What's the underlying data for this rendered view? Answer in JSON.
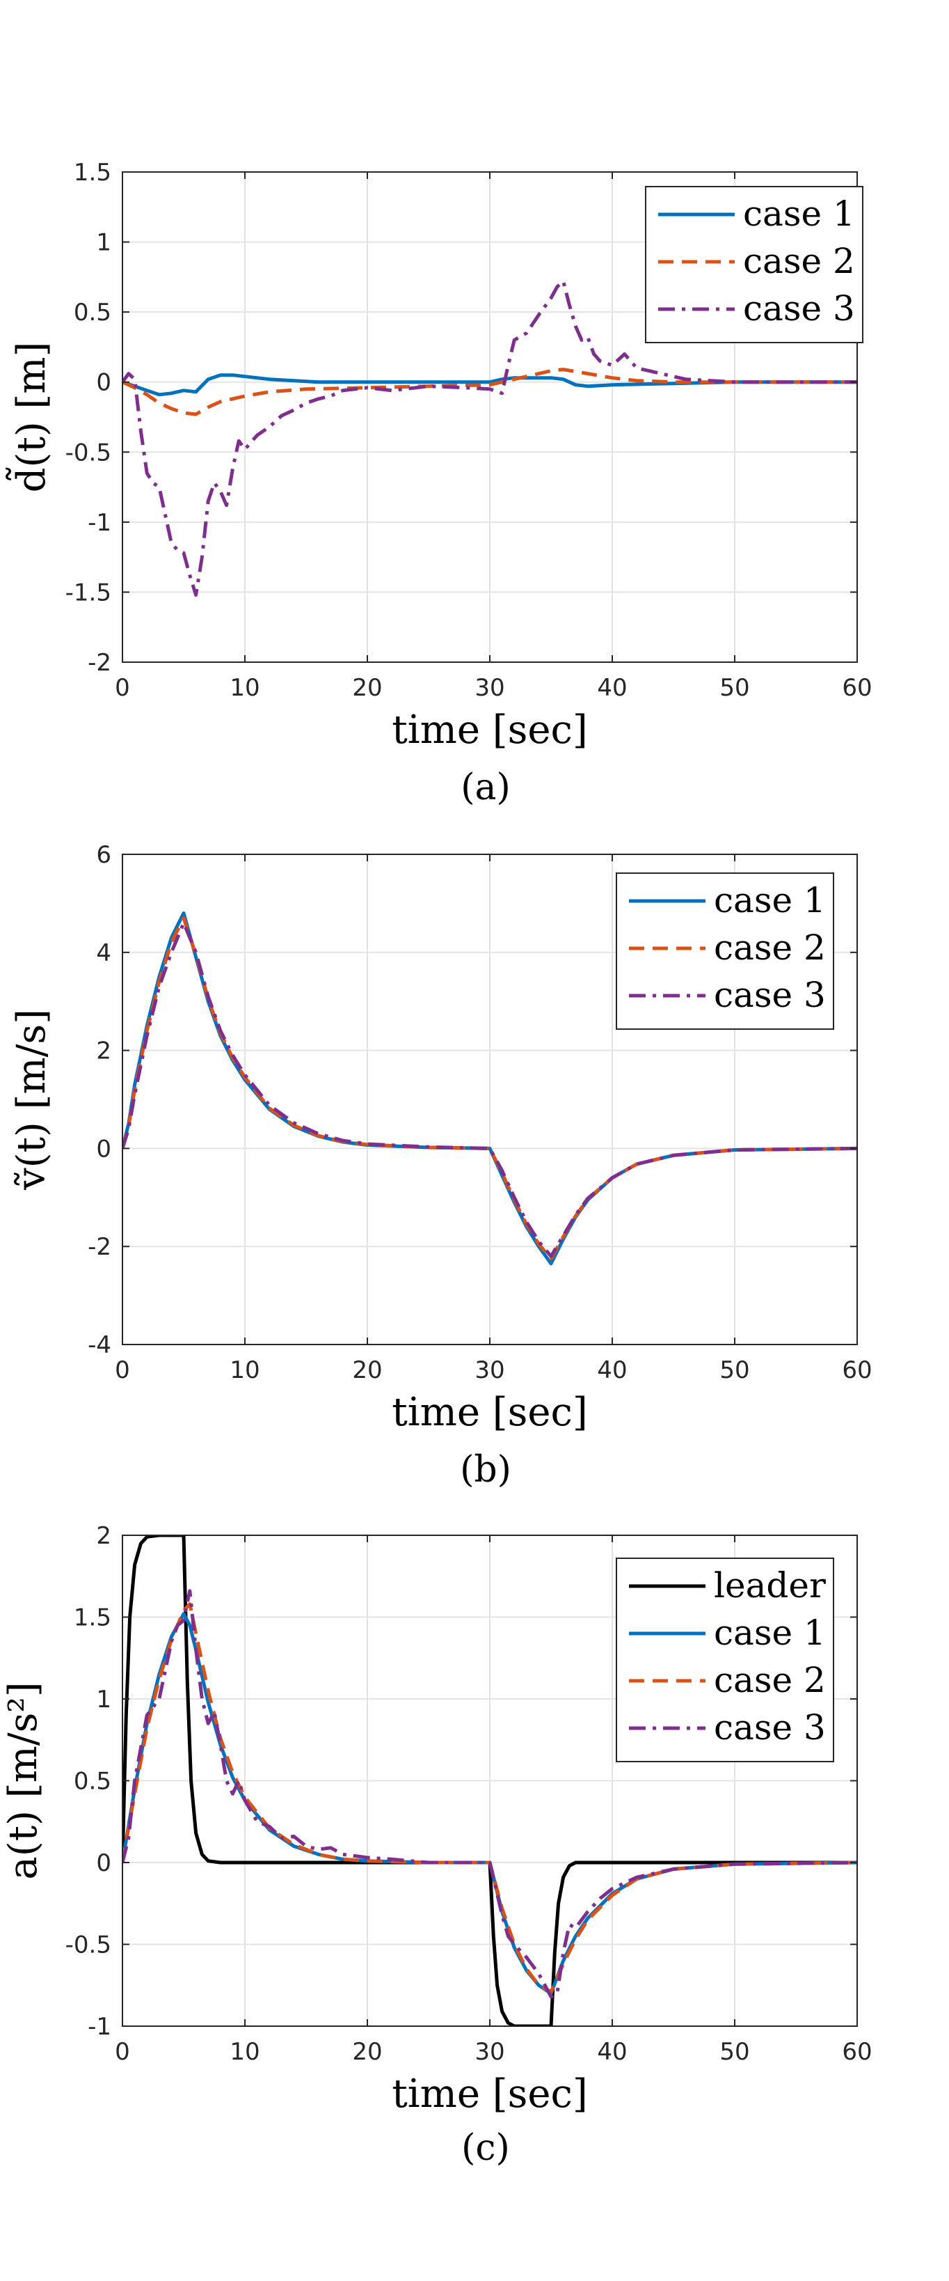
{
  "colors": {
    "leader": "#000000",
    "case1": "#0072BD",
    "case2": "#D95319",
    "case3": "#7E2F8E"
  },
  "chart_data": [
    {
      "type": "line",
      "panel": "(a)",
      "xlabel": "time [sec]",
      "ylabel": "d̃(t) [m]",
      "xlim": [
        0,
        60
      ],
      "ylim": [
        -2,
        1.5
      ],
      "xticks": [
        0,
        10,
        20,
        30,
        40,
        50,
        60
      ],
      "yticks": [
        -2,
        -1.5,
        -1,
        -0.5,
        0,
        0.5,
        1,
        1.5
      ],
      "ytick_labels": [
        "-2",
        "-1.5",
        "-1",
        "-0.5",
        "0",
        "0.5",
        "1",
        "1.5"
      ],
      "grid": true,
      "legend_position": "top-right",
      "series": [
        {
          "name": "case 1",
          "style": "solid",
          "x": [
            0,
            1,
            2,
            3,
            4,
            5,
            6,
            7,
            8,
            9,
            10,
            12,
            14,
            16,
            20,
            25,
            30,
            31,
            32,
            33,
            34,
            35,
            36,
            37,
            38,
            40,
            45,
            50,
            60
          ],
          "y": [
            0,
            -0.03,
            -0.06,
            -0.09,
            -0.08,
            -0.06,
            -0.07,
            0.02,
            0.05,
            0.05,
            0.04,
            0.02,
            0.01,
            0,
            0,
            0,
            0,
            0.02,
            0.03,
            0.03,
            0.03,
            0.03,
            0.02,
            -0.02,
            -0.03,
            -0.02,
            -0.01,
            0,
            0
          ]
        },
        {
          "name": "case 2",
          "style": "dashed",
          "x": [
            0,
            1,
            2,
            3,
            4,
            5,
            6,
            7,
            8,
            10,
            12,
            15,
            20,
            25,
            30,
            31,
            32,
            33,
            34,
            35,
            36,
            38,
            40,
            42,
            45,
            50,
            60
          ],
          "y": [
            0,
            -0.04,
            -0.09,
            -0.15,
            -0.19,
            -0.22,
            -0.23,
            -0.18,
            -0.14,
            -0.1,
            -0.07,
            -0.05,
            -0.04,
            -0.03,
            -0.02,
            0,
            0.02,
            0.04,
            0.06,
            0.08,
            0.09,
            0.06,
            0.03,
            0.01,
            0,
            0,
            0
          ]
        },
        {
          "name": "case 3",
          "style": "dashdot",
          "x": [
            0,
            0.5,
            1,
            1.5,
            2,
            2.5,
            3,
            3.5,
            4,
            4.5,
            5,
            5.5,
            6,
            6.5,
            7,
            7.5,
            8,
            8.5,
            9,
            9.5,
            10,
            11,
            12,
            13,
            14,
            15,
            16,
            17,
            18,
            20,
            22,
            25,
            28,
            30,
            31,
            31.5,
            32,
            33,
            34,
            35,
            35.5,
            36,
            36.5,
            37,
            37.5,
            38,
            38.5,
            39,
            40,
            41,
            42,
            43,
            44,
            45,
            46,
            48,
            50,
            55,
            60
          ],
          "y": [
            0,
            0.06,
            0.02,
            -0.35,
            -0.65,
            -0.72,
            -0.75,
            -0.95,
            -1.15,
            -1.2,
            -1.22,
            -1.38,
            -1.52,
            -1.25,
            -0.85,
            -0.72,
            -0.78,
            -0.88,
            -0.62,
            -0.42,
            -0.48,
            -0.38,
            -0.32,
            -0.24,
            -0.2,
            -0.15,
            -0.12,
            -0.1,
            -0.06,
            -0.04,
            -0.06,
            -0.03,
            -0.04,
            -0.05,
            -0.08,
            0.12,
            0.3,
            0.35,
            0.48,
            0.6,
            0.68,
            0.72,
            0.55,
            0.4,
            0.3,
            0.32,
            0.2,
            0.15,
            0.12,
            0.2,
            0.1,
            0.08,
            0.06,
            0.04,
            0.02,
            0.01,
            0,
            0,
            0
          ]
        }
      ]
    },
    {
      "type": "line",
      "panel": "(b)",
      "xlabel": "time [sec]",
      "ylabel": "ṽ(t) [m/s]",
      "xlim": [
        0,
        60
      ],
      "ylim": [
        -4,
        6
      ],
      "xticks": [
        0,
        10,
        20,
        30,
        40,
        50,
        60
      ],
      "yticks": [
        -4,
        -2,
        0,
        2,
        4,
        6
      ],
      "ytick_labels": [
        "-4",
        "-2",
        "0",
        "2",
        "4",
        "6"
      ],
      "grid": true,
      "legend_position": "top-right",
      "series": [
        {
          "name": "case 1",
          "style": "solid",
          "x": [
            0,
            0.5,
            1,
            2,
            3,
            4,
            5,
            6,
            7,
            8,
            9,
            10,
            12,
            14,
            16,
            18,
            20,
            25,
            30,
            31,
            32,
            33,
            34,
            35,
            36,
            37,
            38,
            40,
            42,
            45,
            50,
            60
          ],
          "y": [
            0,
            0.5,
            1.3,
            2.5,
            3.5,
            4.3,
            4.8,
            3.9,
            3.0,
            2.3,
            1.8,
            1.4,
            0.8,
            0.45,
            0.25,
            0.13,
            0.07,
            0.02,
            0,
            -0.55,
            -1.1,
            -1.6,
            -2.0,
            -2.35,
            -1.85,
            -1.4,
            -1.05,
            -0.6,
            -0.32,
            -0.14,
            -0.03,
            0
          ]
        },
        {
          "name": "case 2",
          "style": "dashed",
          "x": [
            0,
            0.5,
            1,
            2,
            3,
            4,
            5,
            6,
            7,
            8,
            9,
            10,
            12,
            14,
            16,
            18,
            20,
            25,
            30,
            31,
            32,
            33,
            34,
            35,
            36,
            37,
            38,
            40,
            42,
            45,
            50,
            60
          ],
          "y": [
            0,
            0.45,
            1.2,
            2.4,
            3.4,
            4.2,
            4.7,
            3.95,
            3.05,
            2.35,
            1.85,
            1.45,
            0.82,
            0.47,
            0.26,
            0.14,
            0.08,
            0.02,
            0,
            -0.5,
            -1.05,
            -1.55,
            -1.95,
            -2.25,
            -1.8,
            -1.38,
            -1.03,
            -0.6,
            -0.32,
            -0.14,
            -0.03,
            0
          ]
        },
        {
          "name": "case 3",
          "style": "dashdot",
          "x": [
            0,
            0.5,
            1,
            2,
            3,
            4,
            5,
            6,
            7,
            8,
            9,
            10,
            12,
            14,
            16,
            18,
            20,
            25,
            30,
            31,
            32,
            33,
            34,
            35,
            36,
            37,
            38,
            40,
            42,
            45,
            50,
            60
          ],
          "y": [
            0,
            0.4,
            1.1,
            2.3,
            3.3,
            4.0,
            4.6,
            4.0,
            3.1,
            2.4,
            1.9,
            1.5,
            0.88,
            0.52,
            0.3,
            0.16,
            0.09,
            0.03,
            0,
            -0.45,
            -1.0,
            -1.5,
            -1.9,
            -2.2,
            -1.78,
            -1.36,
            -1.02,
            -0.6,
            -0.32,
            -0.14,
            -0.03,
            0
          ]
        }
      ]
    },
    {
      "type": "line",
      "panel": "(c)",
      "xlabel": "time [sec]",
      "ylabel": "a(t) [m/s²]",
      "xlim": [
        0,
        60
      ],
      "ylim": [
        -1,
        2
      ],
      "xticks": [
        0,
        10,
        20,
        30,
        40,
        50,
        60
      ],
      "yticks": [
        -1,
        -0.5,
        0,
        0.5,
        1,
        1.5,
        2
      ],
      "ytick_labels": [
        "-1",
        "-0.5",
        "0",
        "0.5",
        "1",
        "1.5",
        "2"
      ],
      "grid": true,
      "legend_position": "top-right",
      "series": [
        {
          "name": "leader",
          "style": "solid",
          "x": [
            0,
            0.3,
            0.6,
            1,
            1.5,
            2,
            3,
            5,
            5.3,
            5.6,
            6,
            6.5,
            7,
            8,
            30,
            30.3,
            30.6,
            31,
            31.5,
            32,
            33,
            35,
            35.3,
            35.6,
            36,
            36.5,
            37,
            38,
            60
          ],
          "y": [
            0,
            0.9,
            1.5,
            1.82,
            1.95,
            1.99,
            2,
            2,
            1.1,
            0.5,
            0.18,
            0.05,
            0.01,
            0,
            0,
            -0.45,
            -0.75,
            -0.91,
            -0.98,
            -1,
            -1,
            -1,
            -0.55,
            -0.25,
            -0.09,
            -0.02,
            0,
            0,
            0
          ]
        },
        {
          "name": "case 1",
          "style": "solid",
          "x": [
            0,
            1,
            2,
            3,
            4,
            5,
            5.5,
            6,
            7,
            8,
            9,
            10,
            12,
            14,
            16,
            18,
            20,
            25,
            30,
            31,
            32,
            33,
            34,
            35,
            36,
            37,
            38,
            40,
            42,
            45,
            50,
            60
          ],
          "y": [
            0,
            0.45,
            0.85,
            1.15,
            1.38,
            1.52,
            1.45,
            1.3,
            0.98,
            0.72,
            0.52,
            0.38,
            0.2,
            0.1,
            0.05,
            0.02,
            0.01,
            0,
            0,
            -0.3,
            -0.52,
            -0.66,
            -0.75,
            -0.8,
            -0.6,
            -0.45,
            -0.34,
            -0.19,
            -0.1,
            -0.04,
            -0.01,
            0
          ]
        },
        {
          "name": "case 2",
          "style": "dashed",
          "x": [
            0,
            1,
            2,
            3,
            4,
            5,
            5.5,
            6,
            7,
            8,
            9,
            10,
            12,
            14,
            16,
            18,
            20,
            25,
            30,
            31,
            32,
            33,
            34,
            35,
            36,
            37,
            38,
            40,
            42,
            45,
            50,
            60
          ],
          "y": [
            0,
            0.42,
            0.82,
            1.12,
            1.36,
            1.54,
            1.58,
            1.4,
            1.05,
            0.76,
            0.55,
            0.4,
            0.21,
            0.11,
            0.05,
            0.02,
            0.01,
            0,
            0,
            -0.28,
            -0.5,
            -0.65,
            -0.75,
            -0.79,
            -0.62,
            -0.47,
            -0.35,
            -0.2,
            -0.1,
            -0.04,
            -0.01,
            0
          ]
        },
        {
          "name": "case 3",
          "style": "dashdot",
          "x": [
            0,
            0.5,
            1,
            2,
            3,
            4,
            4.5,
            5,
            5.5,
            6,
            6.5,
            7,
            7.5,
            8,
            8.5,
            9,
            9.5,
            10,
            11,
            12,
            13,
            14,
            15,
            16,
            17,
            18,
            20,
            22,
            25,
            30,
            31,
            31.5,
            32,
            33,
            34,
            35,
            35.5,
            36,
            36.5,
            37,
            38,
            39,
            40,
            42,
            45,
            50,
            60
          ],
          "y": [
            0,
            0.15,
            0.5,
            0.9,
            1.0,
            1.35,
            1.45,
            1.48,
            1.66,
            1.3,
            1.0,
            0.85,
            0.92,
            0.72,
            0.5,
            0.42,
            0.5,
            0.38,
            0.25,
            0.22,
            0.15,
            0.16,
            0.1,
            0.08,
            0.09,
            0.05,
            0.03,
            0.02,
            0,
            0,
            -0.32,
            -0.45,
            -0.5,
            -0.58,
            -0.68,
            -0.82,
            -0.8,
            -0.55,
            -0.38,
            -0.4,
            -0.3,
            -0.22,
            -0.16,
            -0.09,
            -0.04,
            -0.01,
            0
          ]
        }
      ]
    }
  ]
}
